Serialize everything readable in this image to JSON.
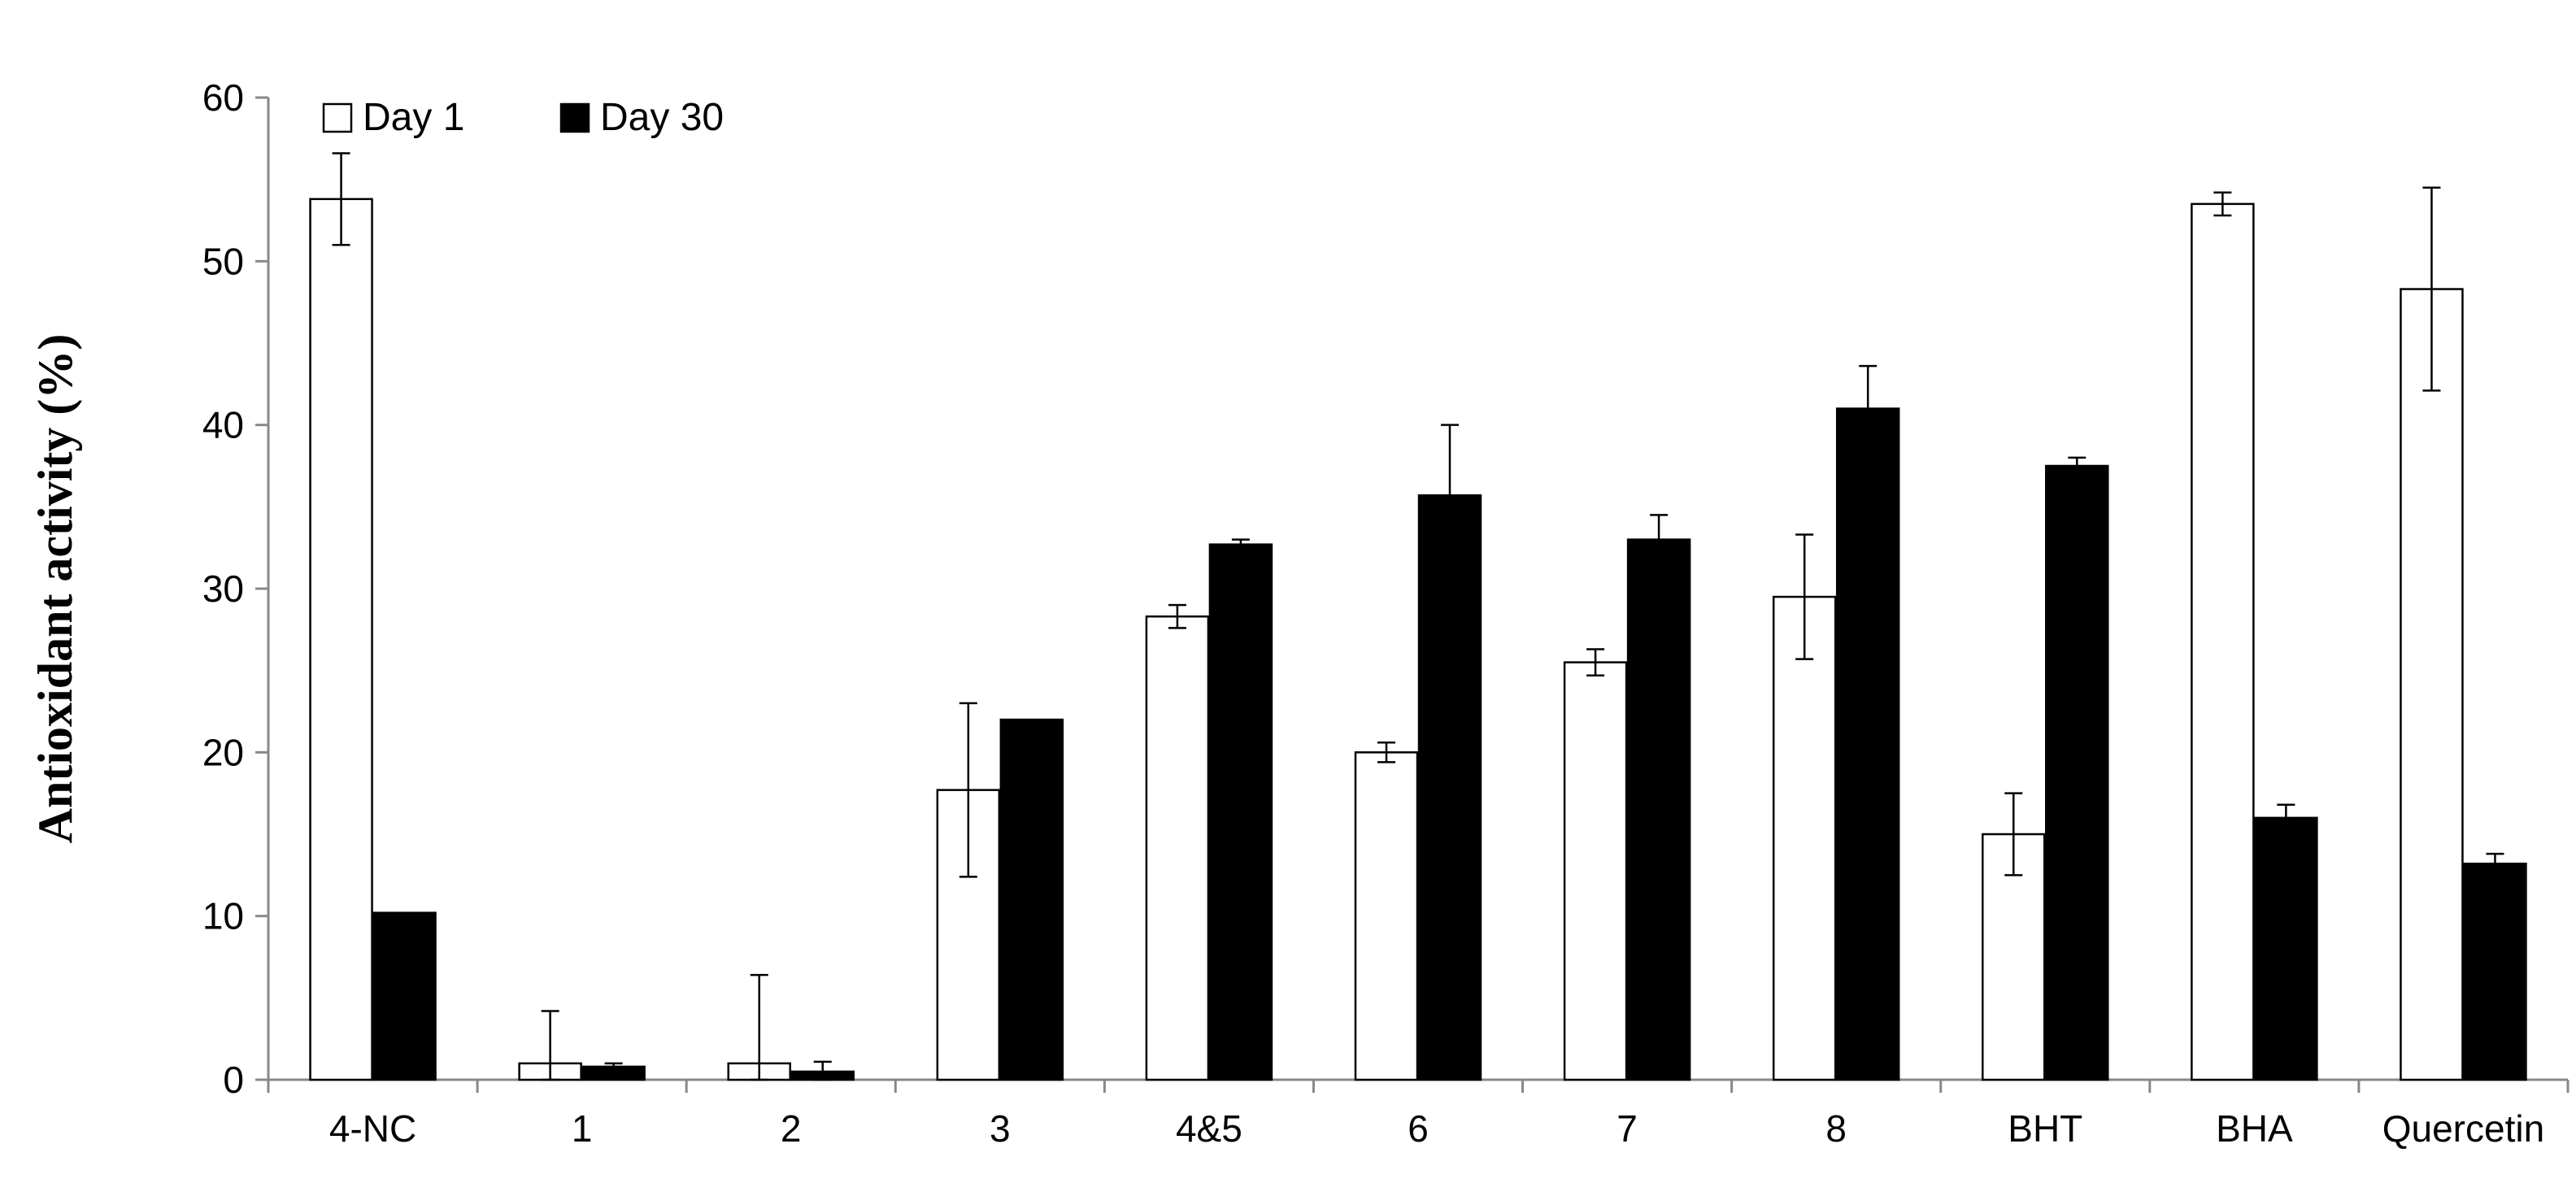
{
  "chart_data": {
    "type": "bar",
    "ylabel": "Antioxidant activity (%)",
    "xlabel": "",
    "ylim": [
      0,
      60
    ],
    "yticks": [
      0,
      10,
      20,
      30,
      40,
      50,
      60
    ],
    "grid": false,
    "legend_position": "top-left",
    "categories": [
      "4-NC",
      "1",
      "2",
      "3",
      "4&5",
      "6",
      "7",
      "8",
      "BHT",
      "BHA",
      "Quercetin"
    ],
    "series": [
      {
        "name": "Day 1",
        "fill": "#ffffff",
        "values": [
          53.8,
          1.0,
          1.0,
          17.7,
          28.3,
          20.0,
          25.5,
          29.5,
          15.0,
          53.5,
          48.3
        ],
        "errors": [
          2.8,
          3.2,
          5.4,
          5.3,
          0.7,
          0.6,
          0.8,
          3.8,
          2.5,
          0.7,
          6.2
        ]
      },
      {
        "name": "Day 30",
        "fill": "#000000",
        "values": [
          10.2,
          0.8,
          0.5,
          22.0,
          32.7,
          35.7,
          33.0,
          41.0,
          37.5,
          16.0,
          13.2
        ],
        "errors": [
          0,
          0.2,
          0.6,
          0,
          0.3,
          4.3,
          1.5,
          2.6,
          0.5,
          0.8,
          0.6
        ]
      }
    ]
  }
}
